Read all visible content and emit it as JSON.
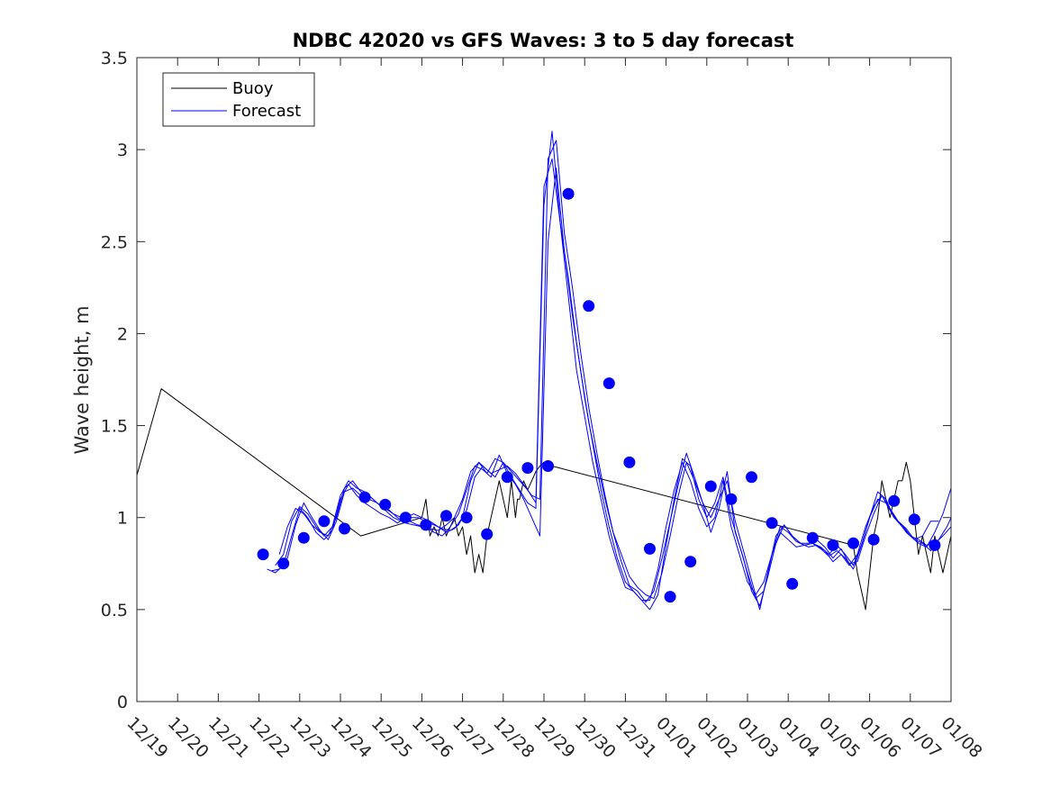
{
  "chart_data": {
    "type": "line",
    "title": "NDBC 42020 vs GFS Waves: 3 to 5 day forecast",
    "xlabel": "",
    "ylabel": "Wave height, m",
    "xlim": [
      0,
      20
    ],
    "ylim": [
      0,
      3.5
    ],
    "x_ticks": [
      0,
      1,
      2,
      3,
      4,
      5,
      6,
      7,
      8,
      9,
      10,
      11,
      12,
      13,
      14,
      15,
      16,
      17,
      18,
      19,
      20
    ],
    "x_tick_labels": [
      "12/19",
      "12/20",
      "12/21",
      "12/22",
      "12/23",
      "12/24",
      "12/25",
      "12/26",
      "12/27",
      "12/28",
      "12/29",
      "12/30",
      "12/31",
      "01/01",
      "01/02",
      "01/03",
      "01/04",
      "01/05",
      "01/06",
      "01/07",
      "01/08"
    ],
    "y_ticks": [
      0,
      0.5,
      1,
      1.5,
      2,
      2.5,
      3,
      3.5
    ],
    "y_tick_labels": [
      "0",
      "0.5",
      "1",
      "1.5",
      "2",
      "2.5",
      "3",
      "3.5"
    ],
    "legend": {
      "location": "top-left",
      "entries": [
        {
          "label": "Buoy",
          "color": "#000000"
        },
        {
          "label": "Forecast",
          "color": "#0000ff"
        }
      ]
    },
    "colors": {
      "buoy": "#000000",
      "forecast": "#0000ff",
      "markers": "#0000ff",
      "axes": "#262626"
    },
    "series": [
      {
        "name": "Buoy",
        "x": [
          0,
          0.6,
          5.5,
          7.0,
          7.1,
          7.2,
          7.3,
          7.4,
          7.5,
          7.6,
          7.7,
          7.8,
          7.9,
          8.0,
          8.1,
          8.2,
          8.3,
          8.4,
          8.5,
          8.6,
          8.7,
          8.8,
          8.9,
          9.0,
          9.1,
          9.2,
          9.3,
          9.35,
          9.4,
          9.5,
          9.6,
          9.7,
          9.8,
          9.9,
          10.0,
          10.1,
          10.2,
          17.6,
          17.7,
          17.8,
          17.9,
          18.0,
          18.1,
          18.2,
          18.3,
          18.4,
          18.5,
          18.6,
          18.7,
          18.8,
          18.9,
          19.0,
          19.1,
          19.2,
          19.3,
          19.4,
          19.5,
          19.6,
          19.7,
          19.8,
          19.9,
          20.0
        ],
        "values": [
          1.23,
          1.7,
          0.9,
          1.0,
          1.1,
          0.9,
          0.95,
          0.9,
          1.0,
          0.9,
          0.95,
          1.0,
          0.9,
          0.95,
          0.8,
          0.9,
          0.7,
          0.8,
          0.7,
          0.9,
          1.0,
          1.1,
          1.2,
          1.1,
          1.0,
          1.2,
          1.0,
          1.1,
          1.1,
          1.2,
          1.15,
          1.2,
          1.25,
          1.28,
          1.3,
          1.28,
          1.28,
          0.85,
          0.7,
          0.6,
          0.5,
          0.7,
          0.9,
          1.0,
          1.2,
          1.1,
          1.0,
          1.1,
          1.2,
          1.2,
          1.3,
          1.2,
          1.0,
          0.8,
          0.9,
          0.8,
          0.7,
          0.9,
          0.8,
          0.7,
          0.8,
          0.9
        ]
      },
      {
        "name": "Forecast",
        "x": [
          3.2,
          3.4,
          3.6,
          3.8,
          4.0,
          4.2,
          4.4,
          4.6,
          4.8,
          5.0,
          5.2,
          5.4,
          5.6,
          5.8,
          6.0,
          6.2,
          6.4,
          6.6,
          6.8,
          7.0,
          7.2,
          7.4,
          7.6,
          7.8,
          8.0,
          8.2,
          8.4,
          8.6,
          8.8,
          9.0,
          9.2,
          9.4,
          9.6,
          9.8,
          10.0,
          10.2,
          10.4,
          10.6,
          10.8,
          11.0,
          11.2,
          11.4,
          11.6,
          11.8,
          12.0,
          12.2,
          12.4,
          12.6,
          12.8,
          13.0,
          13.2,
          13.4,
          13.6,
          13.8,
          14.0,
          14.2,
          14.4,
          14.6,
          14.8,
          15.0,
          15.2,
          15.4,
          15.6,
          15.8,
          16.0,
          16.2,
          16.4,
          16.6,
          16.8,
          17.0,
          17.2,
          17.4,
          17.6,
          17.8,
          18.0,
          18.2,
          18.4,
          18.6,
          18.8,
          19.0,
          19.2,
          19.4,
          19.6,
          19.8,
          20.0
        ],
        "values": [
          0.72,
          0.7,
          0.74,
          0.9,
          1.05,
          1.0,
          0.92,
          0.88,
          0.93,
          1.1,
          1.18,
          1.12,
          1.08,
          1.05,
          1.02,
          1.0,
          0.97,
          1.0,
          1.02,
          1.0,
          0.98,
          0.95,
          0.92,
          0.94,
          1.0,
          1.2,
          1.3,
          1.26,
          1.22,
          1.3,
          1.25,
          1.2,
          1.15,
          1.08,
          2.8,
          2.95,
          2.6,
          2.2,
          1.8,
          1.55,
          1.3,
          1.1,
          0.9,
          0.75,
          0.62,
          0.6,
          0.55,
          0.55,
          0.72,
          0.95,
          1.15,
          1.3,
          1.2,
          1.05,
          0.95,
          1.0,
          1.2,
          0.95,
          0.8,
          0.65,
          0.58,
          0.65,
          0.8,
          0.95,
          0.92,
          0.87,
          0.85,
          0.86,
          0.84,
          0.8,
          0.85,
          0.8,
          0.74,
          0.85,
          1.0,
          1.1,
          1.08,
          1.0,
          0.95,
          0.9,
          0.88,
          0.85,
          0.86,
          0.9,
          0.95
        ]
      },
      {
        "name": "Forecast",
        "x": [
          3.3,
          3.5,
          3.7,
          3.9,
          4.1,
          4.3,
          4.5,
          4.7,
          4.9,
          5.1,
          5.3,
          5.5,
          5.7,
          5.9,
          6.1,
          6.3,
          6.5,
          6.7,
          6.9,
          7.1,
          7.3,
          7.5,
          7.7,
          7.9,
          8.1,
          8.3,
          8.5,
          8.7,
          8.9,
          9.1,
          9.3,
          9.5,
          9.7,
          9.9,
          10.1,
          10.3,
          10.5,
          10.7,
          10.9,
          11.1,
          11.3,
          11.5,
          11.7,
          11.9,
          12.1,
          12.3,
          12.5,
          12.7,
          12.9,
          13.1,
          13.3,
          13.5,
          13.7,
          13.9,
          14.1,
          14.3,
          14.5,
          14.7,
          14.9,
          15.1,
          15.3,
          15.5,
          15.7,
          15.9,
          16.1,
          16.3,
          16.5,
          16.7,
          16.9,
          17.1,
          17.3,
          17.5,
          17.7,
          17.9,
          18.1,
          18.3,
          18.5,
          18.7,
          18.9,
          19.1,
          19.3,
          19.5,
          19.7,
          19.9,
          20.0
        ],
        "values": [
          0.71,
          0.72,
          0.78,
          0.96,
          1.08,
          1.0,
          0.93,
          0.88,
          0.98,
          1.14,
          1.16,
          1.12,
          1.1,
          1.08,
          1.04,
          1.0,
          0.98,
          1.0,
          1.0,
          0.98,
          0.96,
          0.94,
          0.93,
          0.96,
          1.04,
          1.22,
          1.28,
          1.24,
          1.26,
          1.28,
          1.24,
          1.18,
          1.12,
          1.1,
          2.95,
          3.05,
          2.55,
          2.25,
          1.9,
          1.6,
          1.35,
          1.12,
          0.92,
          0.76,
          0.63,
          0.6,
          0.54,
          0.6,
          0.78,
          0.98,
          1.18,
          1.35,
          1.22,
          1.08,
          0.92,
          1.05,
          1.25,
          0.92,
          0.78,
          0.6,
          0.52,
          0.68,
          0.86,
          0.96,
          0.9,
          0.86,
          0.86,
          0.88,
          0.84,
          0.78,
          0.83,
          0.75,
          0.76,
          0.9,
          1.02,
          1.12,
          1.05,
          0.98,
          0.94,
          0.88,
          0.86,
          0.82,
          0.88,
          0.95,
          1.0
        ]
      },
      {
        "name": "Forecast",
        "x": [
          3.4,
          3.6,
          3.8,
          4.0,
          4.2,
          4.4,
          4.6,
          4.8,
          5.0,
          5.2,
          5.4,
          5.6,
          5.8,
          6.0,
          6.2,
          6.4,
          6.6,
          6.8,
          7.0,
          7.2,
          7.4,
          7.6,
          7.8,
          8.0,
          8.2,
          8.4,
          8.6,
          8.8,
          9.0,
          9.2,
          9.4,
          9.6,
          9.8,
          10.0,
          10.2,
          10.4,
          10.6,
          10.8,
          11.0,
          11.2,
          11.4,
          11.6,
          11.8,
          12.0,
          12.2,
          12.4,
          12.6,
          12.8,
          13.0,
          13.2,
          13.4,
          13.6,
          13.8,
          14.0,
          14.2,
          14.4,
          14.6,
          14.8,
          15.0,
          15.2,
          15.4,
          15.6,
          15.8,
          16.0,
          16.2,
          16.4,
          16.6,
          16.8,
          17.0,
          17.2,
          17.4,
          17.6,
          17.8,
          18.0,
          18.2,
          18.4,
          18.6,
          18.8,
          19.0,
          19.2,
          19.4,
          19.6,
          19.8,
          20.0
        ],
        "values": [
          0.74,
          0.8,
          0.98,
          1.06,
          1.02,
          0.95,
          0.9,
          0.95,
          1.12,
          1.2,
          1.16,
          1.14,
          1.1,
          1.06,
          1.04,
          1.0,
          0.97,
          0.96,
          0.95,
          0.94,
          0.93,
          0.96,
          1.0,
          1.1,
          1.25,
          1.3,
          1.24,
          1.32,
          1.3,
          1.22,
          1.15,
          1.08,
          1.05,
          2.7,
          3.1,
          2.6,
          2.3,
          1.95,
          1.65,
          1.4,
          1.15,
          0.95,
          0.78,
          0.65,
          0.6,
          0.55,
          0.5,
          0.58,
          0.85,
          1.1,
          1.32,
          1.28,
          1.1,
          1.0,
          1.08,
          1.22,
          1.0,
          0.85,
          0.7,
          0.56,
          0.6,
          0.8,
          0.92,
          0.88,
          0.84,
          0.85,
          0.86,
          0.83,
          0.79,
          0.82,
          0.78,
          0.72,
          0.85,
          1.0,
          1.14,
          1.1,
          1.0,
          0.96,
          0.9,
          0.86,
          0.84,
          0.92,
          1.02,
          1.16
        ]
      },
      {
        "name": "Forecast",
        "x": [
          3.5,
          3.7,
          3.9,
          4.1,
          4.3,
          4.5,
          4.7,
          4.9,
          5.1,
          5.3,
          5.5,
          5.7,
          5.9,
          6.1,
          6.3,
          6.5,
          6.7,
          6.9,
          7.1,
          7.3,
          7.5,
          7.7,
          7.9,
          8.1,
          8.3,
          8.5,
          8.7,
          8.9,
          9.1,
          9.3,
          9.5,
          9.7,
          9.9,
          10.1,
          10.3,
          10.5,
          10.7,
          10.9,
          11.1,
          11.3,
          11.5,
          11.7,
          11.9,
          12.1,
          12.3,
          12.5,
          12.7,
          12.9,
          13.1,
          13.3,
          13.5,
          13.7,
          13.9,
          14.1,
          14.3,
          14.5,
          14.7,
          14.9,
          15.1,
          15.3,
          15.5,
          15.7,
          15.9,
          16.1,
          16.3,
          16.5,
          16.7,
          16.9,
          17.1,
          17.3,
          17.5,
          17.7,
          17.9,
          18.1,
          18.3,
          18.5,
          18.7,
          18.9,
          19.1,
          19.3,
          19.5,
          19.7
        ],
        "values": [
          0.8,
          0.95,
          1.05,
          1.02,
          0.96,
          0.92,
          0.9,
          1.0,
          1.16,
          1.2,
          1.14,
          1.12,
          1.08,
          1.05,
          1.02,
          1.0,
          0.98,
          0.96,
          0.95,
          0.92,
          0.9,
          0.95,
          1.02,
          1.15,
          1.28,
          1.26,
          1.22,
          1.34,
          1.24,
          1.18,
          1.1,
          1.0,
          0.9,
          2.5,
          2.9,
          2.45,
          2.1,
          1.8,
          1.52,
          1.3,
          1.1,
          0.92,
          0.8,
          0.68,
          0.62,
          0.58,
          0.56,
          0.7,
          0.9,
          1.12,
          1.3,
          1.2,
          1.08,
          1.0,
          1.1,
          1.2,
          0.98,
          0.82,
          0.66,
          0.5,
          0.7,
          0.9,
          0.96,
          0.9,
          0.86,
          0.84,
          0.85,
          0.82,
          0.76,
          0.8,
          0.74,
          0.8,
          0.95,
          1.06,
          1.12,
          1.04,
          0.98,
          0.92,
          0.88,
          0.9,
          0.98,
          0.98
        ]
      }
    ],
    "markers": {
      "name": "Forecast",
      "x": [
        3.1,
        3.6,
        4.1,
        4.6,
        5.1,
        5.6,
        6.1,
        6.6,
        7.1,
        7.6,
        8.1,
        8.6,
        9.1,
        9.6,
        10.1,
        10.6,
        11.1,
        11.6,
        12.1,
        12.6,
        13.1,
        13.6,
        14.1,
        14.6,
        15.1,
        15.6,
        16.1,
        16.6,
        17.1,
        17.6,
        18.1,
        18.6,
        19.1,
        19.6
      ],
      "values": [
        0.8,
        0.75,
        0.89,
        0.98,
        0.94,
        1.11,
        1.07,
        1.0,
        0.96,
        1.01,
        1.0,
        0.91,
        1.22,
        1.27,
        1.28,
        2.76,
        2.15,
        1.73,
        1.3,
        0.83,
        0.57,
        0.76,
        1.17,
        1.1,
        1.22,
        0.97,
        0.64,
        0.89,
        0.85,
        0.86,
        0.88,
        1.09,
        0.99,
        0.85
      ]
    }
  }
}
